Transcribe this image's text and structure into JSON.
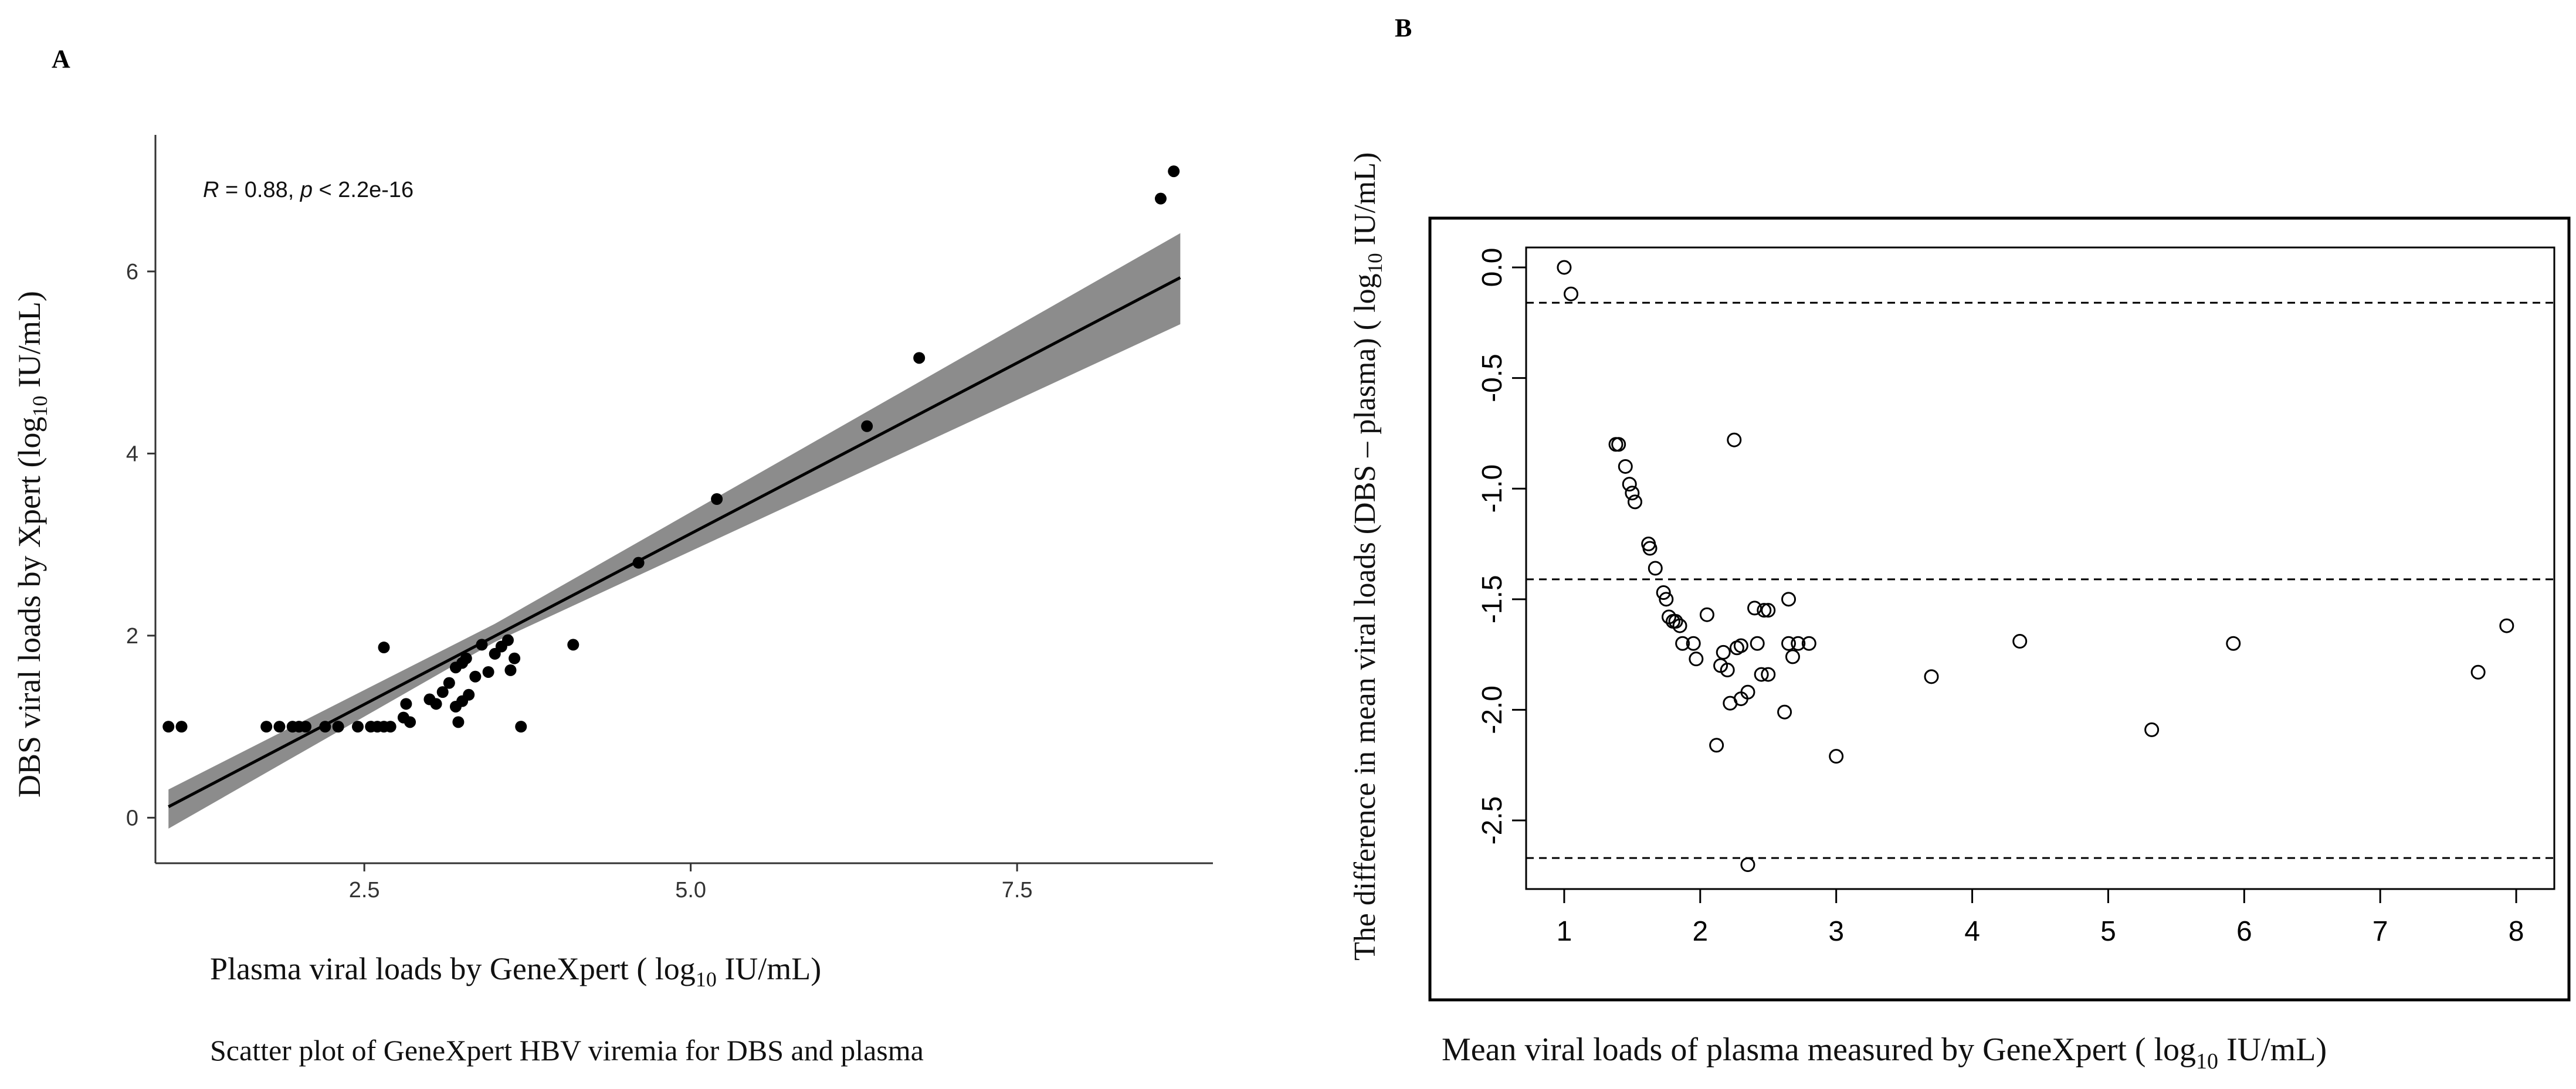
{
  "chart_data": [
    {
      "type": "scatter",
      "panel_label": "A",
      "title": "Scatter plot of GeneXpert HBV viremia for DBS and plasma",
      "xlabel": {
        "pre": "Plasma viral loads  by GeneXpert ( log",
        "sub": "10",
        "post": " IU/mL)"
      },
      "ylabel": {
        "pre": "DBS viral loads by Xpert (log",
        "sub": "10",
        "post": " IU/mL)"
      },
      "xlim": [
        0.9,
        9.0
      ],
      "ylim": [
        -0.5,
        7.5
      ],
      "x_ticks": [
        2.5,
        5.0,
        7.5
      ],
      "x_tick_labels": [
        "2.5",
        "5.0",
        "7.5"
      ],
      "y_ticks": [
        0,
        2,
        4,
        6
      ],
      "y_tick_labels": [
        "0",
        "2",
        "4",
        "6"
      ],
      "annotation": {
        "r_label": "R",
        "r_text": " = 0.88, ",
        "p_label": "p",
        "p_text": " < 2.2e-16"
      },
      "regression": {
        "slope": 0.75,
        "intercept": -0.63,
        "x_range": [
          1.0,
          8.75
        ]
      },
      "confidence_band": {
        "lower": [
          [
            1.0,
            -0.12
          ],
          [
            3.5,
            1.93
          ],
          [
            8.75,
            5.42
          ]
        ],
        "upper": [
          [
            1.0,
            0.31
          ],
          [
            3.5,
            2.13
          ],
          [
            8.75,
            6.42
          ]
        ]
      },
      "points": [
        [
          1.0,
          1.0
        ],
        [
          1.1,
          1.0
        ],
        [
          1.75,
          1.0
        ],
        [
          1.85,
          1.0
        ],
        [
          1.95,
          1.0
        ],
        [
          2.0,
          1.0
        ],
        [
          2.05,
          1.0
        ],
        [
          2.2,
          1.0
        ],
        [
          2.3,
          1.0
        ],
        [
          2.45,
          1.0
        ],
        [
          2.55,
          1.0
        ],
        [
          2.6,
          1.0
        ],
        [
          2.65,
          1.0
        ],
        [
          2.7,
          1.0
        ],
        [
          2.8,
          1.1
        ],
        [
          2.82,
          1.25
        ],
        [
          2.85,
          1.05
        ],
        [
          2.65,
          1.87
        ],
        [
          3.0,
          1.3
        ],
        [
          3.05,
          1.25
        ],
        [
          3.1,
          1.38
        ],
        [
          3.15,
          1.48
        ],
        [
          3.2,
          1.65
        ],
        [
          3.25,
          1.7
        ],
        [
          3.2,
          1.22
        ],
        [
          3.25,
          1.28
        ],
        [
          3.3,
          1.35
        ],
        [
          3.35,
          1.55
        ],
        [
          3.28,
          1.75
        ],
        [
          3.4,
          1.9
        ],
        [
          3.45,
          1.6
        ],
        [
          3.5,
          1.8
        ],
        [
          3.55,
          1.88
        ],
        [
          3.6,
          1.95
        ],
        [
          3.62,
          1.62
        ],
        [
          3.65,
          1.75
        ],
        [
          3.22,
          1.05
        ],
        [
          3.7,
          1.0
        ],
        [
          4.1,
          1.9
        ],
        [
          4.6,
          2.8
        ],
        [
          5.2,
          3.5
        ],
        [
          6.35,
          4.3
        ],
        [
          6.75,
          5.05
        ],
        [
          8.6,
          6.8
        ],
        [
          8.7,
          7.1
        ]
      ]
    },
    {
      "type": "scatter",
      "panel_label": "B",
      "xlabel": {
        "pre": "Mean viral loads of plasma measured by GeneXpert ( log",
        "sub": "10",
        "post": " IU/mL)"
      },
      "ylabel": {
        "pre": "The difference in mean viral loads (DBS – plasma) ( log",
        "sub": "10",
        "post": " IU/mL)"
      },
      "xlim": [
        0.72,
        8.28
      ],
      "ylim": [
        -2.81,
        0.09
      ],
      "x_ticks": [
        1,
        2,
        3,
        4,
        5,
        6,
        7,
        8
      ],
      "x_tick_labels": [
        "1",
        "2",
        "3",
        "4",
        "5",
        "6",
        "7",
        "8"
      ],
      "y_ticks": [
        0.0,
        -0.5,
        -1.0,
        -1.5,
        -2.0,
        -2.5
      ],
      "y_tick_labels": [
        "0.0",
        "-0.5",
        "-1.0",
        "-1.5",
        "-2.0",
        "-2.5"
      ],
      "reference_lines": [
        -0.16,
        -1.41,
        -2.67
      ],
      "points": [
        [
          1.0,
          0.0
        ],
        [
          1.05,
          -0.12
        ],
        [
          1.38,
          -0.8
        ],
        [
          1.4,
          -0.8
        ],
        [
          1.45,
          -0.9
        ],
        [
          1.48,
          -0.98
        ],
        [
          1.5,
          -1.02
        ],
        [
          1.52,
          -1.06
        ],
        [
          1.62,
          -1.25
        ],
        [
          1.63,
          -1.27
        ],
        [
          1.67,
          -1.36
        ],
        [
          1.73,
          -1.47
        ],
        [
          1.75,
          -1.5
        ],
        [
          1.77,
          -1.58
        ],
        [
          1.8,
          -1.6
        ],
        [
          1.82,
          -1.6
        ],
        [
          1.85,
          -1.62
        ],
        [
          1.87,
          -1.7
        ],
        [
          1.95,
          -1.7
        ],
        [
          1.97,
          -1.77
        ],
        [
          2.05,
          -1.57
        ],
        [
          2.12,
          -2.16
        ],
        [
          2.15,
          -1.8
        ],
        [
          2.17,
          -1.74
        ],
        [
          2.2,
          -1.82
        ],
        [
          2.22,
          -1.97
        ],
        [
          2.25,
          -0.78
        ],
        [
          2.27,
          -1.72
        ],
        [
          2.3,
          -1.71
        ],
        [
          2.3,
          -1.95
        ],
        [
          2.35,
          -1.92
        ],
        [
          2.4,
          -1.54
        ],
        [
          2.42,
          -1.7
        ],
        [
          2.45,
          -1.84
        ],
        [
          2.47,
          -1.55
        ],
        [
          2.5,
          -1.55
        ],
        [
          2.5,
          -1.84
        ],
        [
          2.35,
          -2.7
        ],
        [
          2.62,
          -2.01
        ],
        [
          2.65,
          -1.5
        ],
        [
          2.65,
          -1.7
        ],
        [
          2.68,
          -1.76
        ],
        [
          2.72,
          -1.7
        ],
        [
          2.8,
          -1.7
        ],
        [
          3.0,
          -2.21
        ],
        [
          3.7,
          -1.85
        ],
        [
          4.35,
          -1.69
        ],
        [
          5.32,
          -2.09
        ],
        [
          5.92,
          -1.7
        ],
        [
          7.72,
          -1.83
        ],
        [
          7.93,
          -1.62
        ]
      ]
    }
  ]
}
